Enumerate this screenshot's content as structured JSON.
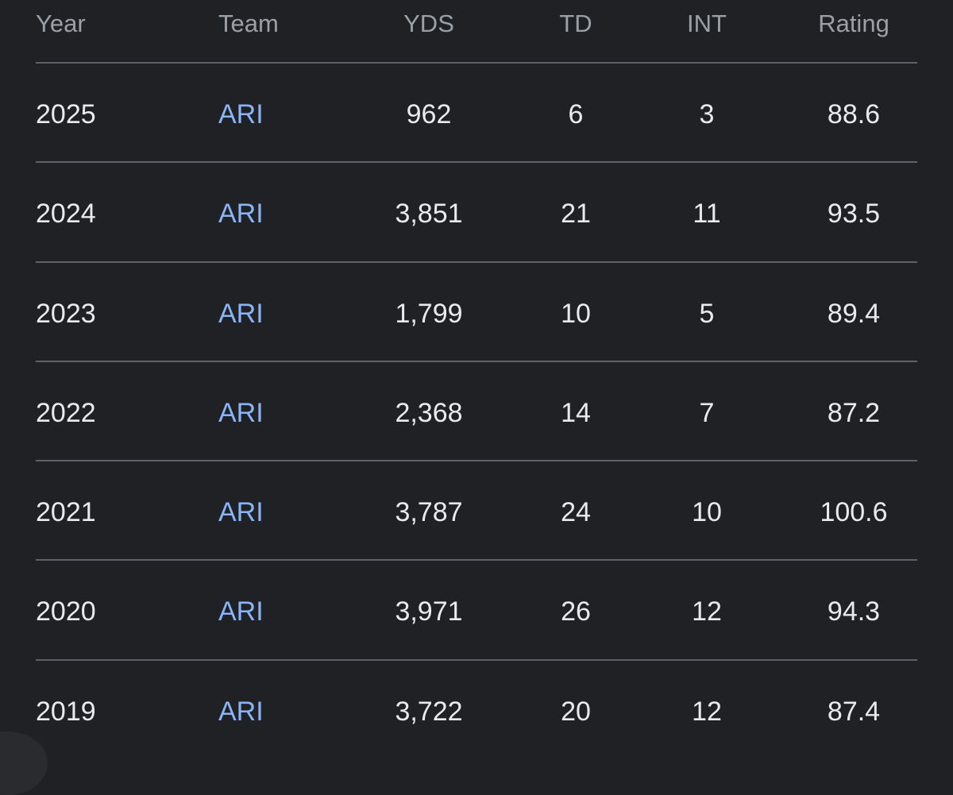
{
  "table": {
    "headers": {
      "year": "Year",
      "team": "Team",
      "yds": "YDS",
      "td": "TD",
      "int": "INT",
      "rating": "Rating"
    },
    "rows": [
      {
        "year": "2025",
        "team": "ARI",
        "yds": "962",
        "td": "6",
        "int": "3",
        "rating": "88.6"
      },
      {
        "year": "2024",
        "team": "ARI",
        "yds": "3,851",
        "td": "21",
        "int": "11",
        "rating": "93.5"
      },
      {
        "year": "2023",
        "team": "ARI",
        "yds": "1,799",
        "td": "10",
        "int": "5",
        "rating": "89.4"
      },
      {
        "year": "2022",
        "team": "ARI",
        "yds": "2,368",
        "td": "14",
        "int": "7",
        "rating": "87.2"
      },
      {
        "year": "2021",
        "team": "ARI",
        "yds": "3,787",
        "td": "24",
        "int": "10",
        "rating": "100.6"
      },
      {
        "year": "2020",
        "team": "ARI",
        "yds": "3,971",
        "td": "26",
        "int": "12",
        "rating": "94.3"
      },
      {
        "year": "2019",
        "team": "ARI",
        "yds": "3,722",
        "td": "20",
        "int": "12",
        "rating": "87.4"
      }
    ]
  },
  "colors": {
    "background": "#202124",
    "text": "#e8eaed",
    "header_text": "#9aa0a6",
    "link": "#8ab4f8",
    "divider": "#5f6368"
  }
}
